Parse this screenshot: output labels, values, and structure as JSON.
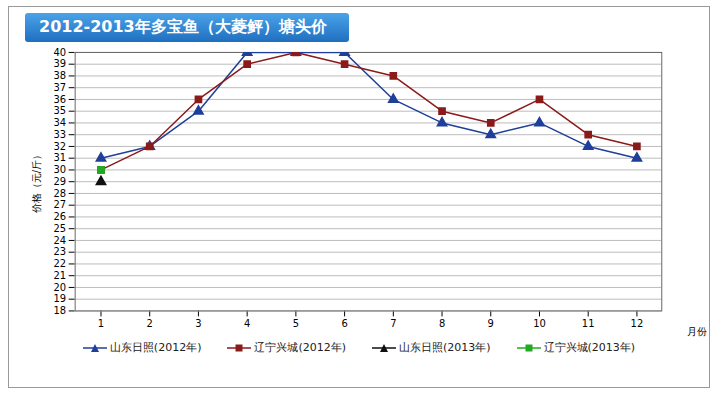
{
  "chart_data": {
    "type": "line",
    "title": "2012-2013年多宝鱼（大菱鲆）塘头价",
    "x_label": "月份",
    "y_label": "价格（元/斤）",
    "categories": [
      "1",
      "2",
      "3",
      "4",
      "5",
      "6",
      "7",
      "8",
      "9",
      "10",
      "11",
      "12"
    ],
    "series": [
      {
        "name": "山东日照(2012年)",
        "color": "#1f3f9a",
        "marker": "triangle",
        "line_style": "solid",
        "values": [
          31,
          32,
          35,
          40,
          40,
          40,
          36,
          34,
          33,
          34,
          32,
          31
        ]
      },
      {
        "name": "辽宁兴城(2012年)",
        "color": "#8b1a1a",
        "marker": "square",
        "line_style": "solid",
        "values": [
          30,
          32,
          36,
          39,
          40,
          39,
          38,
          35,
          34,
          36,
          33,
          32
        ]
      },
      {
        "name": "山东日照(2013年)",
        "color": "#111111",
        "marker": "triangle",
        "line_style": "solid",
        "values": [
          29,
          null,
          null,
          null,
          null,
          null,
          null,
          null,
          null,
          null,
          null,
          null
        ]
      },
      {
        "name": "辽宁兴城(2013年)",
        "color": "#22aa22",
        "marker": "square",
        "line_style": "solid",
        "values": [
          30,
          null,
          null,
          null,
          null,
          null,
          null,
          null,
          null,
          null,
          null,
          null
        ]
      }
    ],
    "ylim": [
      18,
      40
    ],
    "yticks": [
      18,
      19,
      20,
      21,
      22,
      23,
      24,
      25,
      26,
      27,
      28,
      29,
      30,
      31,
      32,
      33,
      34,
      35,
      36,
      37,
      38,
      39,
      40
    ],
    "grid": true,
    "legend": "bottom"
  }
}
